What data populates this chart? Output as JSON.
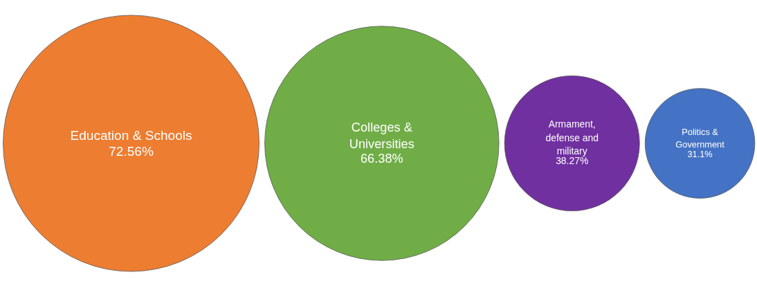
{
  "chart_data": {
    "type": "other",
    "categories": [
      "Education & Schools",
      "Colleges & Universities",
      "Armament, defense and military",
      "Politics & Government"
    ],
    "values": [
      72.56,
      66.38,
      38.27,
      31.1
    ],
    "value_labels": [
      "72.56%",
      "66.38%",
      "38.27%",
      "31.1%"
    ],
    "colors": [
      "#ed7d31",
      "#70ad47",
      "#7030a0",
      "#4472c4"
    ]
  }
}
